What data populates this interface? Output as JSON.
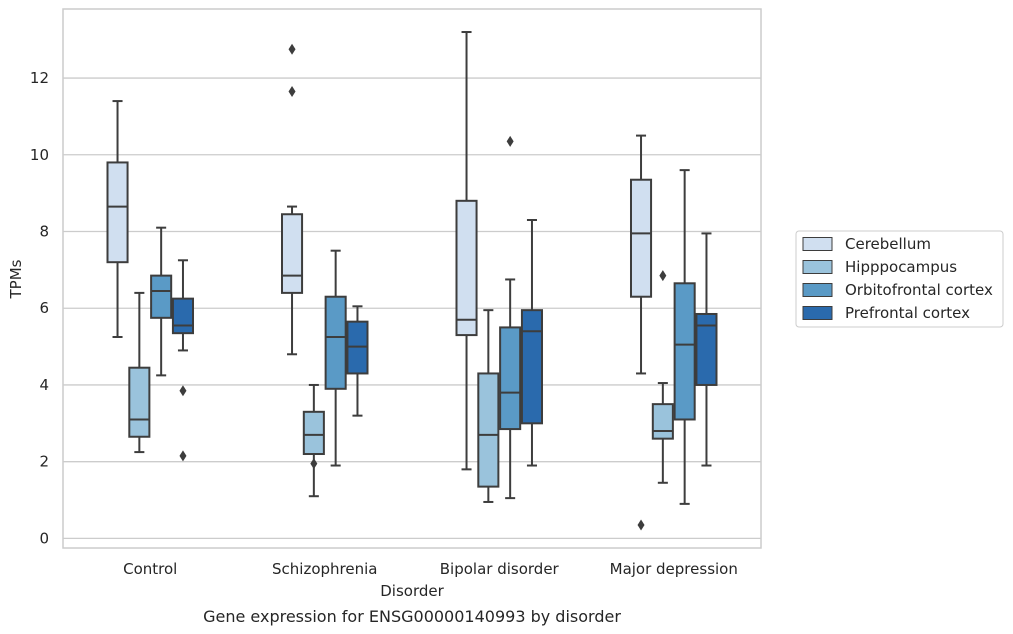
{
  "chart_data": {
    "type": "box",
    "title": "",
    "caption": "Gene expression for ENSG00000140993 by disorder",
    "xlabel": "Disorder",
    "ylabel": "TPMs",
    "ylim": [
      -0.25,
      13.8
    ],
    "yticks": [
      0,
      2,
      4,
      6,
      8,
      10,
      12
    ],
    "grid": "horizontal",
    "legend_position": "right",
    "categories": [
      "Control",
      "Schizophrenia",
      "Bipolar disorder",
      "Major depression"
    ],
    "series": [
      {
        "name": "Cerebellum",
        "color": "#d0dff0",
        "boxes": [
          {
            "q1": 7.2,
            "median": 8.65,
            "q3": 9.8,
            "whisker_low": 5.25,
            "whisker_high": 11.4,
            "outliers": []
          },
          {
            "q1": 6.4,
            "median": 6.85,
            "q3": 8.45,
            "whisker_low": 4.8,
            "whisker_high": 8.65,
            "outliers": [
              12.75,
              11.65
            ]
          },
          {
            "q1": 5.3,
            "median": 5.7,
            "q3": 8.8,
            "whisker_low": 1.8,
            "whisker_high": 13.2,
            "outliers": []
          },
          {
            "q1": 6.3,
            "median": 7.95,
            "q3": 9.35,
            "whisker_low": 4.3,
            "whisker_high": 10.5,
            "outliers": [
              0.35
            ]
          }
        ]
      },
      {
        "name": "Hipppocampus",
        "color": "#9ac3dc",
        "boxes": [
          {
            "q1": 2.65,
            "median": 3.1,
            "q3": 4.45,
            "whisker_low": 2.25,
            "whisker_high": 6.4,
            "outliers": []
          },
          {
            "q1": 2.2,
            "median": 2.7,
            "q3": 3.3,
            "whisker_low": 1.1,
            "whisker_high": 4.0,
            "outliers": [
              1.95
            ]
          },
          {
            "q1": 1.35,
            "median": 2.7,
            "q3": 4.3,
            "whisker_low": 0.95,
            "whisker_high": 5.95,
            "outliers": []
          },
          {
            "q1": 2.6,
            "median": 2.8,
            "q3": 3.5,
            "whisker_low": 1.45,
            "whisker_high": 4.05,
            "outliers": [
              6.85
            ]
          }
        ]
      },
      {
        "name": "Orbitofrontal cortex",
        "color": "#5a9ac6",
        "boxes": [
          {
            "q1": 5.75,
            "median": 6.45,
            "q3": 6.85,
            "whisker_low": 4.25,
            "whisker_high": 8.1,
            "outliers": []
          },
          {
            "q1": 3.9,
            "median": 5.25,
            "q3": 6.3,
            "whisker_low": 1.9,
            "whisker_high": 7.5,
            "outliers": []
          },
          {
            "q1": 2.85,
            "median": 3.8,
            "q3": 5.5,
            "whisker_low": 1.05,
            "whisker_high": 6.75,
            "outliers": [
              10.35
            ]
          },
          {
            "q1": 3.1,
            "median": 5.05,
            "q3": 6.65,
            "whisker_low": 0.9,
            "whisker_high": 9.6,
            "outliers": []
          }
        ]
      },
      {
        "name": "Prefrontal cortex",
        "color": "#2a6aad",
        "boxes": [
          {
            "q1": 5.35,
            "median": 5.55,
            "q3": 6.25,
            "whisker_low": 4.9,
            "whisker_high": 7.25,
            "outliers": [
              3.85,
              2.15
            ]
          },
          {
            "q1": 4.3,
            "median": 5.0,
            "q3": 5.65,
            "whisker_low": 3.2,
            "whisker_high": 6.05,
            "outliers": []
          },
          {
            "q1": 3.0,
            "median": 5.4,
            "q3": 5.95,
            "whisker_low": 1.9,
            "whisker_high": 8.3,
            "outliers": []
          },
          {
            "q1": 4.0,
            "median": 5.55,
            "q3": 5.85,
            "whisker_low": 1.9,
            "whisker_high": 7.95,
            "outliers": []
          }
        ]
      }
    ]
  }
}
